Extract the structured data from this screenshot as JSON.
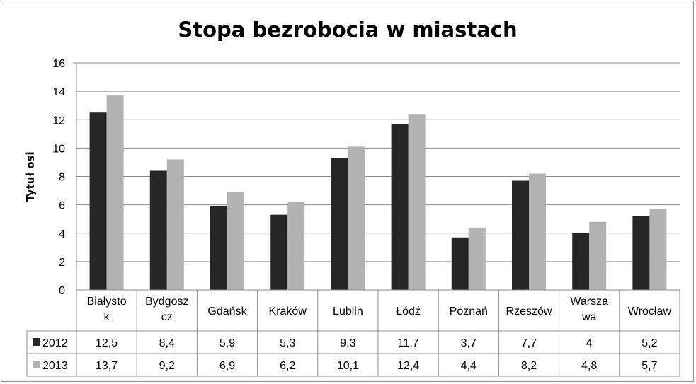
{
  "chart_data": {
    "type": "bar",
    "title": "Stopa bezrobocia w miastach",
    "ylabel": "Tytuł osi",
    "xlabel": "",
    "ylim": [
      0,
      16
    ],
    "yticks": [
      0,
      2,
      4,
      6,
      8,
      10,
      12,
      14,
      16
    ],
    "grid": true,
    "legend": "data-table",
    "categories": [
      "Białystok",
      "Bydgoszcz",
      "Gdańsk",
      "Kraków",
      "Lublin",
      "Łódź",
      "Poznań",
      "Rzeszów",
      "Warszawa",
      "Wrocław"
    ],
    "category_lines": [
      [
        "Białysto",
        "k"
      ],
      [
        "Bydgosz",
        "cz"
      ],
      [
        "Gdańsk"
      ],
      [
        "Kraków"
      ],
      [
        "Lublin"
      ],
      [
        "Łódź"
      ],
      [
        "Poznań"
      ],
      [
        "Rzeszów"
      ],
      [
        "Warsza",
        "wa"
      ],
      [
        "Wrocław"
      ]
    ],
    "series": [
      {
        "name": "2012",
        "color": "#262626",
        "values": [
          12.5,
          8.4,
          5.9,
          5.3,
          9.3,
          11.7,
          3.7,
          7.7,
          4,
          5.2
        ],
        "labels": [
          "12,5",
          "8,4",
          "5,9",
          "5,3",
          "9,3",
          "11,7",
          "3,7",
          "7,7",
          "4",
          "5,2"
        ]
      },
      {
        "name": "2013",
        "color": "#b3b3b3",
        "values": [
          13.7,
          9.2,
          6.9,
          6.2,
          10.1,
          12.4,
          4.4,
          8.2,
          4.8,
          5.7
        ],
        "labels": [
          "13,7",
          "9,2",
          "6,9",
          "6,2",
          "10,1",
          "12,4",
          "4,4",
          "8,2",
          "4,8",
          "5,7"
        ]
      }
    ]
  }
}
